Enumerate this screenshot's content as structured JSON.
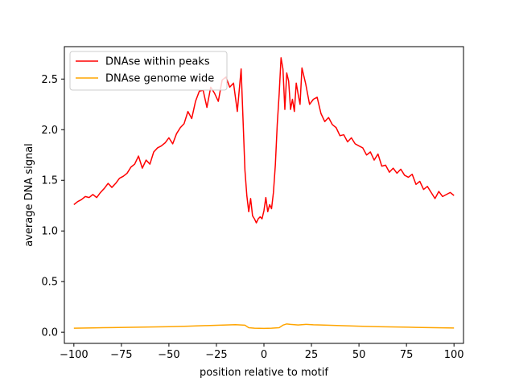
{
  "chart_data": {
    "type": "line",
    "title": "",
    "xlabel": "position relative to motif",
    "ylabel": "average DNA signal",
    "xlim": [
      -105,
      105
    ],
    "ylim": [
      -0.11,
      2.82
    ],
    "xticks": [
      -100,
      -75,
      -50,
      -25,
      0,
      25,
      50,
      75,
      100
    ],
    "xtick_labels": [
      "−100",
      "−75",
      "−50",
      "−25",
      "0",
      "25",
      "50",
      "75",
      "100"
    ],
    "yticks": [
      0.0,
      0.5,
      1.0,
      1.5,
      2.0,
      2.5
    ],
    "ytick_labels": [
      "0.0",
      "0.5",
      "1.0",
      "1.5",
      "2.0",
      "2.5"
    ],
    "grid": false,
    "legend_position": "top-left",
    "series": [
      {
        "name": "DNAse within peaks",
        "color": "#ff0000",
        "x": [
          -100,
          -98,
          -96,
          -94,
          -92,
          -90,
          -88,
          -86,
          -84,
          -82,
          -80,
          -78,
          -76,
          -74,
          -72,
          -70,
          -68,
          -66,
          -64,
          -62,
          -60,
          -58,
          -56,
          -54,
          -52,
          -50,
          -48,
          -46,
          -44,
          -42,
          -40,
          -38,
          -36,
          -34,
          -32,
          -30,
          -28,
          -26,
          -24,
          -22,
          -20,
          -18,
          -16,
          -14,
          -12,
          -10,
          -9,
          -8,
          -7,
          -6,
          -5,
          -4,
          -3,
          -2,
          -1,
          0,
          1,
          2,
          3,
          4,
          5,
          6,
          7,
          8,
          9,
          10,
          11,
          12,
          13,
          14,
          15,
          16,
          17,
          18,
          19,
          20,
          22,
          24,
          26,
          28,
          30,
          32,
          34,
          36,
          38,
          40,
          42,
          44,
          46,
          48,
          50,
          52,
          54,
          56,
          58,
          60,
          62,
          64,
          66,
          68,
          70,
          72,
          74,
          76,
          78,
          80,
          82,
          84,
          86,
          88,
          90,
          92,
          94,
          96,
          98,
          100
        ],
        "y": [
          1.26,
          1.29,
          1.31,
          1.34,
          1.33,
          1.36,
          1.33,
          1.38,
          1.42,
          1.47,
          1.43,
          1.47,
          1.52,
          1.54,
          1.57,
          1.63,
          1.66,
          1.74,
          1.62,
          1.7,
          1.66,
          1.78,
          1.82,
          1.84,
          1.87,
          1.92,
          1.86,
          1.96,
          2.02,
          2.06,
          2.18,
          2.11,
          2.28,
          2.38,
          2.39,
          2.22,
          2.42,
          2.36,
          2.28,
          2.49,
          2.52,
          2.42,
          2.46,
          2.18,
          2.6,
          1.6,
          1.35,
          1.19,
          1.32,
          1.15,
          1.12,
          1.08,
          1.12,
          1.14,
          1.12,
          1.2,
          1.33,
          1.19,
          1.26,
          1.22,
          1.38,
          1.65,
          2.05,
          2.35,
          2.71,
          2.6,
          2.2,
          2.56,
          2.48,
          2.2,
          2.3,
          2.18,
          2.46,
          2.35,
          2.25,
          2.61,
          2.45,
          2.25,
          2.3,
          2.32,
          2.16,
          2.08,
          2.12,
          2.05,
          2.02,
          1.94,
          1.95,
          1.88,
          1.92,
          1.86,
          1.84,
          1.82,
          1.75,
          1.78,
          1.7,
          1.76,
          1.64,
          1.65,
          1.58,
          1.62,
          1.57,
          1.61,
          1.55,
          1.53,
          1.56,
          1.46,
          1.49,
          1.41,
          1.44,
          1.38,
          1.32,
          1.39,
          1.34,
          1.36,
          1.38,
          1.35
        ]
      },
      {
        "name": "DNAse genome wide",
        "color": "#ffa500",
        "x": [
          -100,
          -90,
          -80,
          -70,
          -60,
          -50,
          -40,
          -30,
          -20,
          -15,
          -10,
          -8,
          -5,
          0,
          4,
          8,
          10,
          12,
          14,
          18,
          22,
          26,
          30,
          40,
          50,
          60,
          70,
          80,
          90,
          100
        ],
        "y": [
          0.04,
          0.043,
          0.046,
          0.049,
          0.052,
          0.055,
          0.06,
          0.066,
          0.072,
          0.075,
          0.07,
          0.045,
          0.04,
          0.038,
          0.04,
          0.045,
          0.07,
          0.082,
          0.078,
          0.072,
          0.078,
          0.074,
          0.072,
          0.066,
          0.06,
          0.055,
          0.052,
          0.048,
          0.045,
          0.042
        ]
      }
    ]
  }
}
